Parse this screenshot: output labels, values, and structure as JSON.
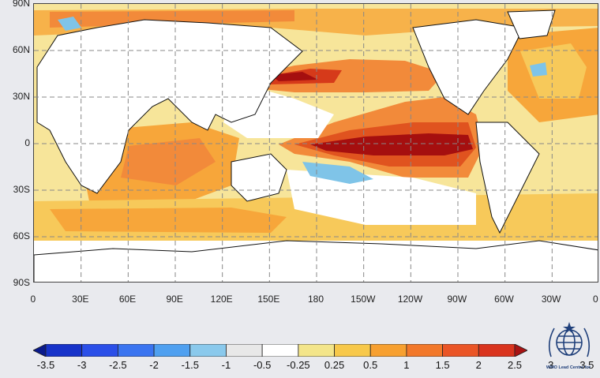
{
  "map": {
    "lat_labels": [
      "90N",
      "60N",
      "30N",
      "0",
      "30S",
      "60S",
      "90S"
    ],
    "lon_labels": [
      "0",
      "30E",
      "60E",
      "90E",
      "120E",
      "150E",
      "180",
      "150W",
      "120W",
      "90W",
      "60W",
      "30W",
      "0"
    ],
    "grid": "dashed",
    "ocean_shading_colors": {
      "strong_positive": "#a50f0f",
      "positive_3": "#d63a1a",
      "positive_2": "#f06a2a",
      "positive_1": "#f7a63a",
      "positive_05": "#f7c95a",
      "positive_025": "#f7e59a",
      "neutral": "#ffffff",
      "negative": "#7fc4e8",
      "land": "#ffffff"
    }
  },
  "colorbar": {
    "ticks": [
      "-3.5",
      "-3",
      "-2.5",
      "-2",
      "-1.5",
      "-1",
      "-0.5",
      "-0.25",
      "0.25",
      "0.5",
      "1",
      "1.5",
      "2",
      "2.5",
      "3",
      "3.5"
    ],
    "colors": [
      "#0a1a8c",
      "#1733c9",
      "#2b4fe8",
      "#3a74f0",
      "#4fa0f0",
      "#8ac9ec",
      "#e8e8e8",
      "#ffffff",
      "#f3e58a",
      "#f7c84a",
      "#f7a030",
      "#f2782a",
      "#ea5526",
      "#d9341e",
      "#a81414"
    ]
  },
  "logo": {
    "caption": "WMO Lead Centre for",
    "icon": "wmo-emblem-icon"
  }
}
